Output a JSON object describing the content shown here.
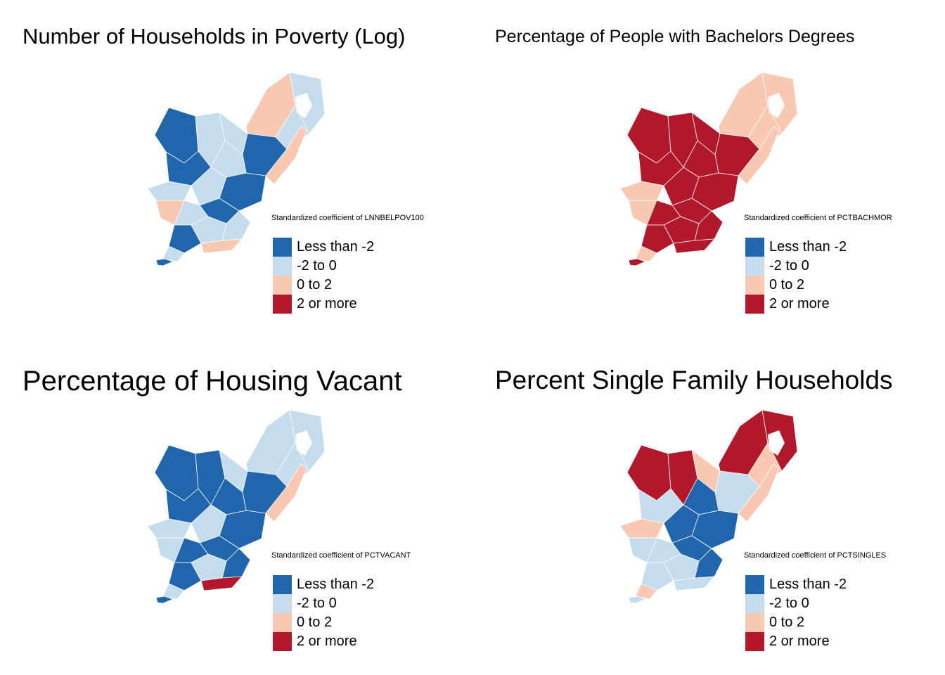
{
  "legend_colors": {
    "lt_neg2": "#2166ac",
    "neg2_0": "#c5dcec",
    "0_2": "#f9c8b2",
    "gt2": "#b2182b"
  },
  "legend_labels": [
    "Less than -2",
    "-2 to 0",
    "0 to 2",
    "2 or more"
  ],
  "panels": [
    {
      "title": "Number of Households in Poverty (Log)",
      "legend_title": "Standardized coefficient of LNNBELPOV100",
      "region_classes": [
        "lt_neg2",
        "neg2_0",
        "neg2_0",
        "0_2",
        "neg2_0",
        "neg2_0",
        "lt_neg2",
        "neg2_0",
        "lt_neg2",
        "neg2_0",
        "neg2_0",
        "lt_neg2",
        "0_2",
        "neg2_0",
        "lt_neg2",
        "neg2_0",
        "lt_neg2",
        "neg2_0",
        "0_2",
        "neg2_0",
        "lt_neg2",
        "0_2"
      ]
    },
    {
      "title": "Percentage of People with Bachelors Degrees",
      "legend_title": "Standardized coefficient of PCTBACHMOR",
      "region_classes": [
        "gt2",
        "gt2",
        "gt2",
        "0_2",
        "0_2",
        "0_2",
        "gt2",
        "gt2",
        "gt2",
        "0_2",
        "gt2",
        "gt2",
        "0_2",
        "gt2",
        "gt2",
        "gt2",
        "gt2",
        "gt2",
        "gt2",
        "0_2",
        "gt2",
        "0_2"
      ]
    },
    {
      "title": "Percentage of Housing Vacant",
      "legend_title": "Standardized coefficient of PCTVACANT",
      "region_classes": [
        "lt_neg2",
        "lt_neg2",
        "neg2_0",
        "neg2_0",
        "neg2_0",
        "neg2_0",
        "lt_neg2",
        "lt_neg2",
        "lt_neg2",
        "neg2_0",
        "neg2_0",
        "lt_neg2",
        "neg2_0",
        "lt_neg2",
        "lt_neg2",
        "neg2_0",
        "lt_neg2",
        "lt_neg2",
        "gt2",
        "neg2_0",
        "lt_neg2",
        "0_2"
      ]
    },
    {
      "title": "Percent Single Family Households",
      "legend_title": "Standardized coefficient of PCTSINGLES",
      "region_classes": [
        "gt2",
        "gt2",
        "0_2",
        "gt2",
        "gt2",
        "0_2",
        "neg2_0",
        "lt_neg2",
        "neg2_0",
        "0_2",
        "lt_neg2",
        "lt_neg2",
        "neg2_0",
        "neg2_0",
        "lt_neg2",
        "neg2_0",
        "neg2_0",
        "lt_neg2",
        "neg2_0",
        "0_2",
        "neg2_0",
        "0_2"
      ]
    }
  ]
}
